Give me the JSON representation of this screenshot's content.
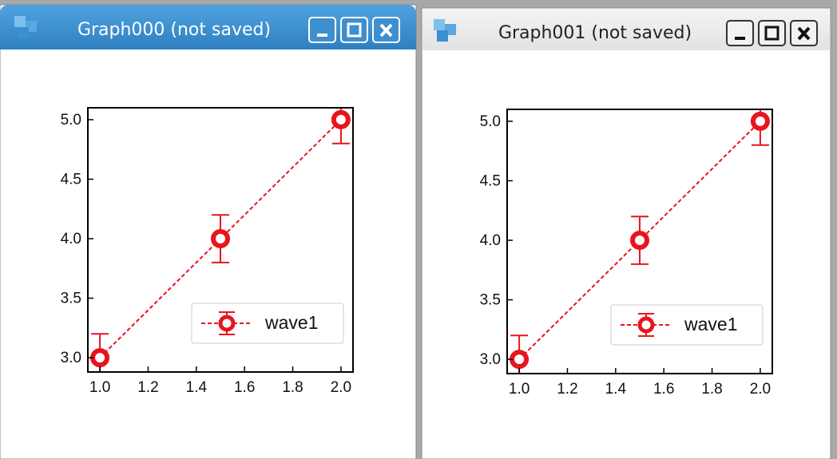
{
  "windows": [
    {
      "title": "Graph000 (not saved)"
    },
    {
      "title": "Graph001 (not saved)"
    }
  ],
  "chart_data": [
    {
      "type": "scatter",
      "line_style": "dashed",
      "legend": "lower right",
      "series": [
        {
          "name": "wave1",
          "color": "#e8141e",
          "x": [
            1,
            1.5,
            2
          ],
          "values": [
            3,
            4,
            5
          ],
          "errors": [
            0.2,
            0.2,
            0.2
          ]
        }
      ],
      "xlim": [
        0.95,
        2.05
      ],
      "ylim": [
        2.88,
        5.1
      ],
      "xticks": [
        {
          "value": 1,
          "label": "1.0"
        },
        1.2,
        1.4,
        1.6,
        1.8,
        {
          "value": 2,
          "label": "2.0"
        }
      ],
      "yticks": [
        {
          "value": 3,
          "label": "3.0"
        },
        3.5,
        {
          "value": 4,
          "label": "4.0"
        },
        4.5,
        {
          "value": 5,
          "label": "5.0"
        }
      ]
    },
    {
      "type": "scatter",
      "line_style": "dashed",
      "legend": "lower right",
      "series": [
        {
          "name": "wave1",
          "color": "#e8141e",
          "x": [
            1,
            1.5,
            2
          ],
          "values": [
            3,
            4,
            5
          ],
          "errors": [
            0.2,
            0.2,
            0.2
          ]
        }
      ],
      "xlim": [
        0.95,
        2.05
      ],
      "ylim": [
        2.88,
        5.1
      ],
      "xticks": [
        {
          "value": 1,
          "label": "1.0"
        },
        1.2,
        1.4,
        1.6,
        1.8,
        {
          "value": 2,
          "label": "2.0"
        }
      ],
      "yticks": [
        {
          "value": 3,
          "label": "3.0"
        },
        3.5,
        {
          "value": 4,
          "label": "4.0"
        },
        4.5,
        {
          "value": 5,
          "label": "5.0"
        }
      ]
    }
  ]
}
